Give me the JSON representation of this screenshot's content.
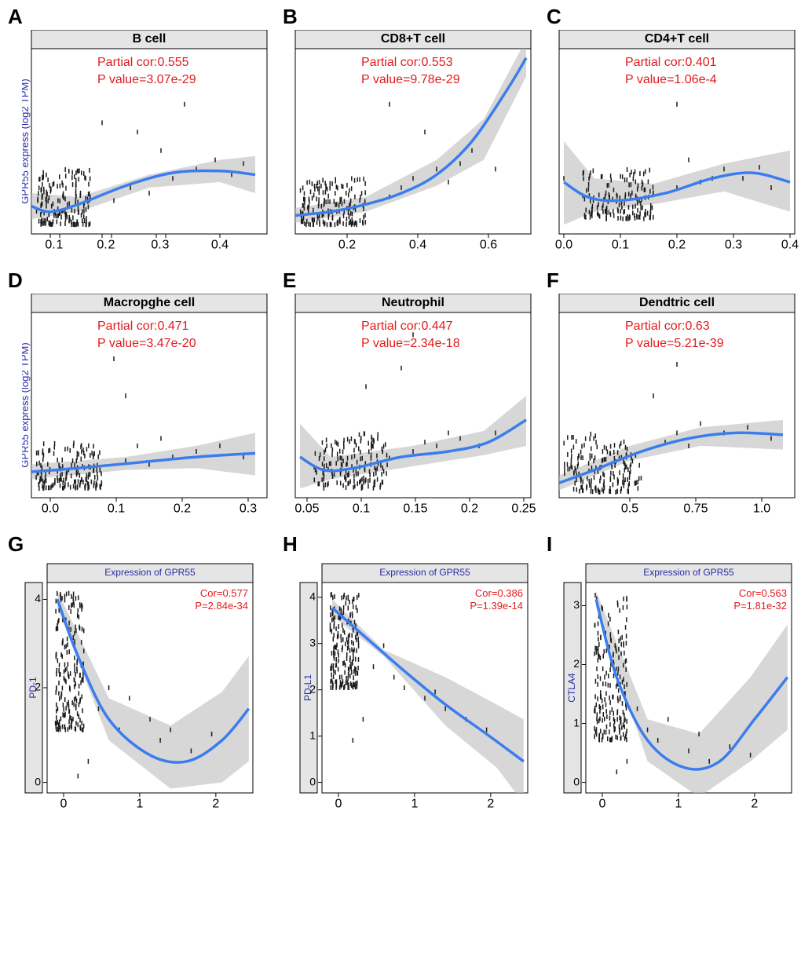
{
  "global": {
    "ylabel_top": "GPR55 express (log2 TPM)",
    "curve_color": "#3b7ded",
    "ribbon_color": "#bdbdbd",
    "stat_color": "#e31a1c",
    "point_color": "#1a1a1a",
    "strip_bg": "#e5e5e5",
    "plot_bg": "#ffffff"
  },
  "panels": [
    {
      "letter": "A",
      "title": "B cell",
      "cor_label": "Partial cor:0.555",
      "pval_label": "P value=3.07e-29",
      "xticks": [
        "0.",
        "1",
        "0.",
        "2",
        "0.",
        "3",
        "0.4"
      ],
      "xtick_vals": [
        0.08,
        0.12,
        0.3,
        0.34,
        0.53,
        0.57,
        0.8
      ],
      "ylabel": true,
      "type": "top",
      "curve": [
        [
          0,
          0.15
        ],
        [
          0.08,
          0.12
        ],
        [
          0.2,
          0.16
        ],
        [
          0.4,
          0.26
        ],
        [
          0.6,
          0.33
        ],
        [
          0.8,
          0.34
        ],
        [
          0.95,
          0.32
        ]
      ],
      "ribbon_top": [
        [
          0,
          0.22
        ],
        [
          0.2,
          0.2
        ],
        [
          0.5,
          0.32
        ],
        [
          0.8,
          0.4
        ],
        [
          0.95,
          0.42
        ]
      ],
      "ribbon_bot": [
        [
          0,
          0.08
        ],
        [
          0.2,
          0.12
        ],
        [
          0.5,
          0.25
        ],
        [
          0.8,
          0.28
        ],
        [
          0.95,
          0.22
        ]
      ],
      "pts_cluster": {
        "xrange": [
          0.02,
          0.25
        ],
        "yrange": [
          0.05,
          0.35
        ],
        "n": 180
      },
      "pts_sparse": [
        [
          0.35,
          0.18
        ],
        [
          0.42,
          0.25
        ],
        [
          0.5,
          0.22
        ],
        [
          0.55,
          0.45
        ],
        [
          0.6,
          0.3
        ],
        [
          0.65,
          0.7
        ],
        [
          0.7,
          0.35
        ],
        [
          0.78,
          0.4
        ],
        [
          0.85,
          0.32
        ],
        [
          0.9,
          0.38
        ],
        [
          0.45,
          0.55
        ],
        [
          0.3,
          0.6
        ]
      ]
    },
    {
      "letter": "B",
      "title": "CD8+T cell",
      "cor_label": "Partial cor:0.553",
      "pval_label": "P value=9.78e-29",
      "xticks": [
        "0.2",
        "0.4",
        "0.6"
      ],
      "xtick_vals": [
        0.22,
        0.52,
        0.82
      ],
      "ylabel": false,
      "type": "top",
      "curve": [
        [
          0,
          0.1
        ],
        [
          0.15,
          0.12
        ],
        [
          0.3,
          0.16
        ],
        [
          0.45,
          0.22
        ],
        [
          0.6,
          0.32
        ],
        [
          0.75,
          0.5
        ],
        [
          0.9,
          0.78
        ],
        [
          0.98,
          0.95
        ]
      ],
      "ribbon_top": [
        [
          0,
          0.14
        ],
        [
          0.3,
          0.2
        ],
        [
          0.6,
          0.4
        ],
        [
          0.8,
          0.62
        ],
        [
          0.98,
          1.05
        ]
      ],
      "ribbon_bot": [
        [
          0,
          0.06
        ],
        [
          0.3,
          0.12
        ],
        [
          0.6,
          0.26
        ],
        [
          0.8,
          0.4
        ],
        [
          0.98,
          0.85
        ]
      ],
      "pts_cluster": {
        "xrange": [
          0.02,
          0.3
        ],
        "yrange": [
          0.05,
          0.3
        ],
        "n": 180
      },
      "pts_sparse": [
        [
          0.4,
          0.2
        ],
        [
          0.45,
          0.25
        ],
        [
          0.5,
          0.3
        ],
        [
          0.55,
          0.55
        ],
        [
          0.6,
          0.35
        ],
        [
          0.65,
          0.28
        ],
        [
          0.4,
          0.7
        ],
        [
          0.75,
          0.45
        ],
        [
          0.85,
          0.35
        ],
        [
          0.7,
          0.38
        ]
      ]
    },
    {
      "letter": "C",
      "title": "CD4+T cell",
      "cor_label": "Partial cor:0.401",
      "pval_label": "P value=1.06e-4",
      "xticks": [
        "0.0",
        "0.1",
        "0.2",
        "0.3",
        "0.4"
      ],
      "xtick_vals": [
        0.02,
        0.26,
        0.5,
        0.74,
        0.98
      ],
      "ylabel": false,
      "type": "top",
      "curve": [
        [
          0.02,
          0.28
        ],
        [
          0.12,
          0.2
        ],
        [
          0.25,
          0.18
        ],
        [
          0.45,
          0.22
        ],
        [
          0.65,
          0.3
        ],
        [
          0.82,
          0.33
        ],
        [
          0.98,
          0.28
        ]
      ],
      "ribbon_top": [
        [
          0.02,
          0.5
        ],
        [
          0.15,
          0.3
        ],
        [
          0.4,
          0.27
        ],
        [
          0.7,
          0.38
        ],
        [
          0.98,
          0.45
        ]
      ],
      "ribbon_bot": [
        [
          0.02,
          0.05
        ],
        [
          0.15,
          0.12
        ],
        [
          0.4,
          0.16
        ],
        [
          0.7,
          0.23
        ],
        [
          0.98,
          0.12
        ]
      ],
      "pts_cluster": {
        "xrange": [
          0.1,
          0.4
        ],
        "yrange": [
          0.08,
          0.35
        ],
        "n": 160
      },
      "pts_sparse": [
        [
          0.02,
          0.3
        ],
        [
          0.5,
          0.25
        ],
        [
          0.55,
          0.4
        ],
        [
          0.6,
          0.28
        ],
        [
          0.65,
          0.3
        ],
        [
          0.7,
          0.35
        ],
        [
          0.78,
          0.3
        ],
        [
          0.85,
          0.36
        ],
        [
          0.9,
          0.25
        ],
        [
          0.5,
          0.7
        ]
      ]
    },
    {
      "letter": "D",
      "title": "Macropghe cell",
      "cor_label": "Partial cor:0.471",
      "pval_label": "P value=3.47e-20",
      "xticks": [
        "0.0",
        "0.1",
        "0.2",
        "0.3"
      ],
      "xtick_vals": [
        0.08,
        0.36,
        0.64,
        0.92
      ],
      "ylabel": true,
      "type": "top",
      "curve": [
        [
          0,
          0.14
        ],
        [
          0.2,
          0.16
        ],
        [
          0.45,
          0.19
        ],
        [
          0.7,
          0.22
        ],
        [
          0.95,
          0.24
        ]
      ],
      "ribbon_top": [
        [
          0,
          0.18
        ],
        [
          0.4,
          0.22
        ],
        [
          0.7,
          0.28
        ],
        [
          0.95,
          0.35
        ]
      ],
      "ribbon_bot": [
        [
          0,
          0.1
        ],
        [
          0.4,
          0.15
        ],
        [
          0.7,
          0.16
        ],
        [
          0.95,
          0.12
        ]
      ],
      "pts_cluster": {
        "xrange": [
          0.02,
          0.3
        ],
        "yrange": [
          0.05,
          0.3
        ],
        "n": 170
      },
      "pts_sparse": [
        [
          0.4,
          0.2
        ],
        [
          0.45,
          0.28
        ],
        [
          0.5,
          0.18
        ],
        [
          0.55,
          0.32
        ],
        [
          0.6,
          0.22
        ],
        [
          0.7,
          0.25
        ],
        [
          0.8,
          0.28
        ],
        [
          0.9,
          0.22
        ],
        [
          0.35,
          0.75
        ],
        [
          0.4,
          0.55
        ]
      ]
    },
    {
      "letter": "E",
      "title": "Neutrophil",
      "cor_label": "Partial cor:0.447",
      "pval_label": "P value=2.34e-18",
      "xticks": [
        "0.05",
        "0.1",
        "0.15",
        "0.2",
        "0.25"
      ],
      "xtick_vals": [
        0.05,
        0.28,
        0.51,
        0.74,
        0.97
      ],
      "ylabel": false,
      "type": "top",
      "curve": [
        [
          0.02,
          0.22
        ],
        [
          0.12,
          0.15
        ],
        [
          0.25,
          0.16
        ],
        [
          0.45,
          0.22
        ],
        [
          0.65,
          0.25
        ],
        [
          0.82,
          0.3
        ],
        [
          0.98,
          0.42
        ]
      ],
      "ribbon_top": [
        [
          0.02,
          0.4
        ],
        [
          0.15,
          0.22
        ],
        [
          0.5,
          0.28
        ],
        [
          0.8,
          0.36
        ],
        [
          0.98,
          0.55
        ]
      ],
      "ribbon_bot": [
        [
          0.02,
          0.05
        ],
        [
          0.15,
          0.1
        ],
        [
          0.5,
          0.17
        ],
        [
          0.8,
          0.23
        ],
        [
          0.98,
          0.28
        ]
      ],
      "pts_cluster": {
        "xrange": [
          0.08,
          0.4
        ],
        "yrange": [
          0.05,
          0.35
        ],
        "n": 170
      },
      "pts_sparse": [
        [
          0.5,
          0.25
        ],
        [
          0.55,
          0.3
        ],
        [
          0.6,
          0.28
        ],
        [
          0.65,
          0.35
        ],
        [
          0.7,
          0.32
        ],
        [
          0.78,
          0.28
        ],
        [
          0.85,
          0.35
        ],
        [
          0.45,
          0.7
        ],
        [
          0.5,
          0.88
        ],
        [
          0.3,
          0.6
        ]
      ]
    },
    {
      "letter": "F",
      "title": "Dendtric cell",
      "cor_label": "Partial cor:0.63",
      "pval_label": "P value=5.21e-39",
      "xticks": [
        "0.5",
        "0.75",
        "1.0"
      ],
      "xtick_vals": [
        0.3,
        0.58,
        0.86
      ],
      "ylabel": false,
      "type": "top",
      "curve": [
        [
          0,
          0.08
        ],
        [
          0.15,
          0.15
        ],
        [
          0.35,
          0.25
        ],
        [
          0.55,
          0.32
        ],
        [
          0.75,
          0.35
        ],
        [
          0.95,
          0.34
        ]
      ],
      "ribbon_top": [
        [
          0,
          0.12
        ],
        [
          0.3,
          0.28
        ],
        [
          0.6,
          0.38
        ],
        [
          0.95,
          0.42
        ]
      ],
      "ribbon_bot": [
        [
          0,
          0.04
        ],
        [
          0.3,
          0.2
        ],
        [
          0.6,
          0.28
        ],
        [
          0.95,
          0.26
        ]
      ],
      "pts_cluster": {
        "xrange": [
          0.02,
          0.35
        ],
        "yrange": [
          0.03,
          0.35
        ],
        "n": 180
      },
      "pts_sparse": [
        [
          0.45,
          0.3
        ],
        [
          0.5,
          0.35
        ],
        [
          0.55,
          0.28
        ],
        [
          0.6,
          0.4
        ],
        [
          0.7,
          0.35
        ],
        [
          0.8,
          0.38
        ],
        [
          0.9,
          0.32
        ],
        [
          0.4,
          0.55
        ],
        [
          0.5,
          0.72
        ]
      ]
    },
    {
      "letter": "G",
      "xtitle": "Expression of GPR55",
      "ytitle": "PD-1",
      "cor_label": "Cor=0.577",
      "pval_label": "P=2.84e-34",
      "xticks": [
        "0",
        "1",
        "2"
      ],
      "xtick_vals": [
        0.08,
        0.45,
        0.82
      ],
      "yticks": [
        "0",
        "2",
        "4"
      ],
      "ytick_vals": [
        0.95,
        0.5,
        0.08
      ],
      "type": "bottom",
      "curve": [
        [
          0.05,
          0.92
        ],
        [
          0.15,
          0.65
        ],
        [
          0.3,
          0.35
        ],
        [
          0.5,
          0.18
        ],
        [
          0.68,
          0.15
        ],
        [
          0.85,
          0.25
        ],
        [
          0.98,
          0.4
        ]
      ],
      "ribbon_top": [
        [
          0.05,
          0.96
        ],
        [
          0.3,
          0.45
        ],
        [
          0.6,
          0.32
        ],
        [
          0.85,
          0.48
        ],
        [
          0.98,
          0.65
        ]
      ],
      "ribbon_bot": [
        [
          0.05,
          0.88
        ],
        [
          0.3,
          0.25
        ],
        [
          0.6,
          0.02
        ],
        [
          0.85,
          0.05
        ],
        [
          0.98,
          0.15
        ]
      ],
      "pts_cluster": {
        "xrange": [
          0.04,
          0.18
        ],
        "yrange": [
          0.3,
          0.95
        ],
        "n": 200
      },
      "pts_sparse": [
        [
          0.25,
          0.4
        ],
        [
          0.3,
          0.5
        ],
        [
          0.35,
          0.3
        ],
        [
          0.4,
          0.45
        ],
        [
          0.5,
          0.35
        ],
        [
          0.55,
          0.25
        ],
        [
          0.6,
          0.3
        ],
        [
          0.7,
          0.2
        ],
        [
          0.8,
          0.28
        ],
        [
          0.2,
          0.15
        ],
        [
          0.15,
          0.08
        ]
      ]
    },
    {
      "letter": "H",
      "xtitle": "Expression of GPR55",
      "ytitle": "PD-L1",
      "cor_label": "Cor=0.386",
      "pval_label": "P=1.39e-14",
      "xticks": [
        "0",
        "1",
        "2"
      ],
      "xtick_vals": [
        0.08,
        0.45,
        0.82
      ],
      "yticks": [
        "0",
        "1",
        "2",
        "3",
        "4"
      ],
      "ytick_vals": [
        0.95,
        0.73,
        0.51,
        0.29,
        0.07
      ],
      "type": "bottom",
      "curve": [
        [
          0.05,
          0.88
        ],
        [
          0.2,
          0.75
        ],
        [
          0.4,
          0.58
        ],
        [
          0.6,
          0.42
        ],
        [
          0.8,
          0.28
        ],
        [
          0.98,
          0.15
        ]
      ],
      "ribbon_top": [
        [
          0.05,
          0.92
        ],
        [
          0.3,
          0.68
        ],
        [
          0.6,
          0.55
        ],
        [
          0.85,
          0.42
        ],
        [
          0.98,
          0.35
        ]
      ],
      "ribbon_bot": [
        [
          0.05,
          0.84
        ],
        [
          0.3,
          0.65
        ],
        [
          0.6,
          0.32
        ],
        [
          0.85,
          0.12
        ],
        [
          0.98,
          -0.05
        ]
      ],
      "pts_cluster": {
        "xrange": [
          0.04,
          0.18
        ],
        "yrange": [
          0.5,
          0.95
        ],
        "n": 200
      },
      "pts_sparse": [
        [
          0.25,
          0.6
        ],
        [
          0.3,
          0.7
        ],
        [
          0.35,
          0.55
        ],
        [
          0.4,
          0.5
        ],
        [
          0.5,
          0.45
        ],
        [
          0.55,
          0.48
        ],
        [
          0.6,
          0.4
        ],
        [
          0.7,
          0.35
        ],
        [
          0.8,
          0.3
        ],
        [
          0.15,
          0.25
        ],
        [
          0.2,
          0.35
        ]
      ]
    },
    {
      "letter": "I",
      "xtitle": "Expression of GPR55",
      "ytitle": "CTLA4",
      "cor_label": "Cor=0.563",
      "pval_label": "P=1.81e-32",
      "xticks": [
        "0",
        "1",
        "2"
      ],
      "xtick_vals": [
        0.08,
        0.45,
        0.82
      ],
      "yticks": [
        "0",
        "1",
        "2",
        "3"
      ],
      "ytick_vals": [
        0.95,
        0.67,
        0.39,
        0.11
      ],
      "type": "bottom",
      "curve": [
        [
          0.05,
          0.92
        ],
        [
          0.15,
          0.55
        ],
        [
          0.3,
          0.25
        ],
        [
          0.48,
          0.12
        ],
        [
          0.65,
          0.15
        ],
        [
          0.82,
          0.35
        ],
        [
          0.98,
          0.55
        ]
      ],
      "ribbon_top": [
        [
          0.05,
          0.96
        ],
        [
          0.3,
          0.35
        ],
        [
          0.55,
          0.28
        ],
        [
          0.8,
          0.55
        ],
        [
          0.98,
          0.8
        ]
      ],
      "ribbon_bot": [
        [
          0.05,
          0.88
        ],
        [
          0.3,
          0.15
        ],
        [
          0.55,
          -0.02
        ],
        [
          0.8,
          0.15
        ],
        [
          0.98,
          0.3
        ]
      ],
      "pts_cluster": {
        "xrange": [
          0.04,
          0.2
        ],
        "yrange": [
          0.25,
          0.95
        ],
        "n": 200
      },
      "pts_sparse": [
        [
          0.25,
          0.4
        ],
        [
          0.3,
          0.3
        ],
        [
          0.35,
          0.25
        ],
        [
          0.4,
          0.35
        ],
        [
          0.5,
          0.2
        ],
        [
          0.55,
          0.28
        ],
        [
          0.6,
          0.15
        ],
        [
          0.7,
          0.22
        ],
        [
          0.8,
          0.18
        ],
        [
          0.15,
          0.1
        ],
        [
          0.2,
          0.15
        ]
      ]
    }
  ]
}
